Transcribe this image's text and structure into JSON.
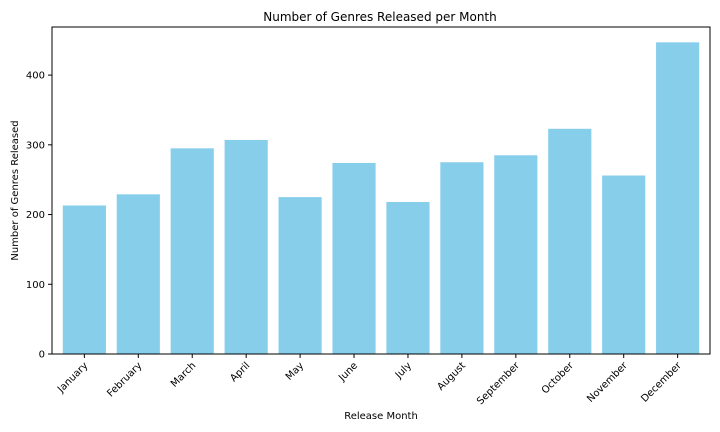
{
  "chart_data": {
    "type": "bar",
    "title": "Number of Genres Released per Month",
    "xlabel": "Release Month",
    "ylabel": "Number of Genres Released",
    "categories": [
      "January",
      "February",
      "March",
      "April",
      "May",
      "June",
      "July",
      "August",
      "September",
      "October",
      "November",
      "December"
    ],
    "values": [
      213,
      229,
      295,
      307,
      225,
      274,
      218,
      275,
      285,
      323,
      256,
      447
    ],
    "ylim": [
      0,
      469
    ],
    "yticks": [
      0,
      100,
      200,
      300,
      400
    ],
    "bar_color": "#87CEEB",
    "grid": false,
    "legend": "none"
  }
}
